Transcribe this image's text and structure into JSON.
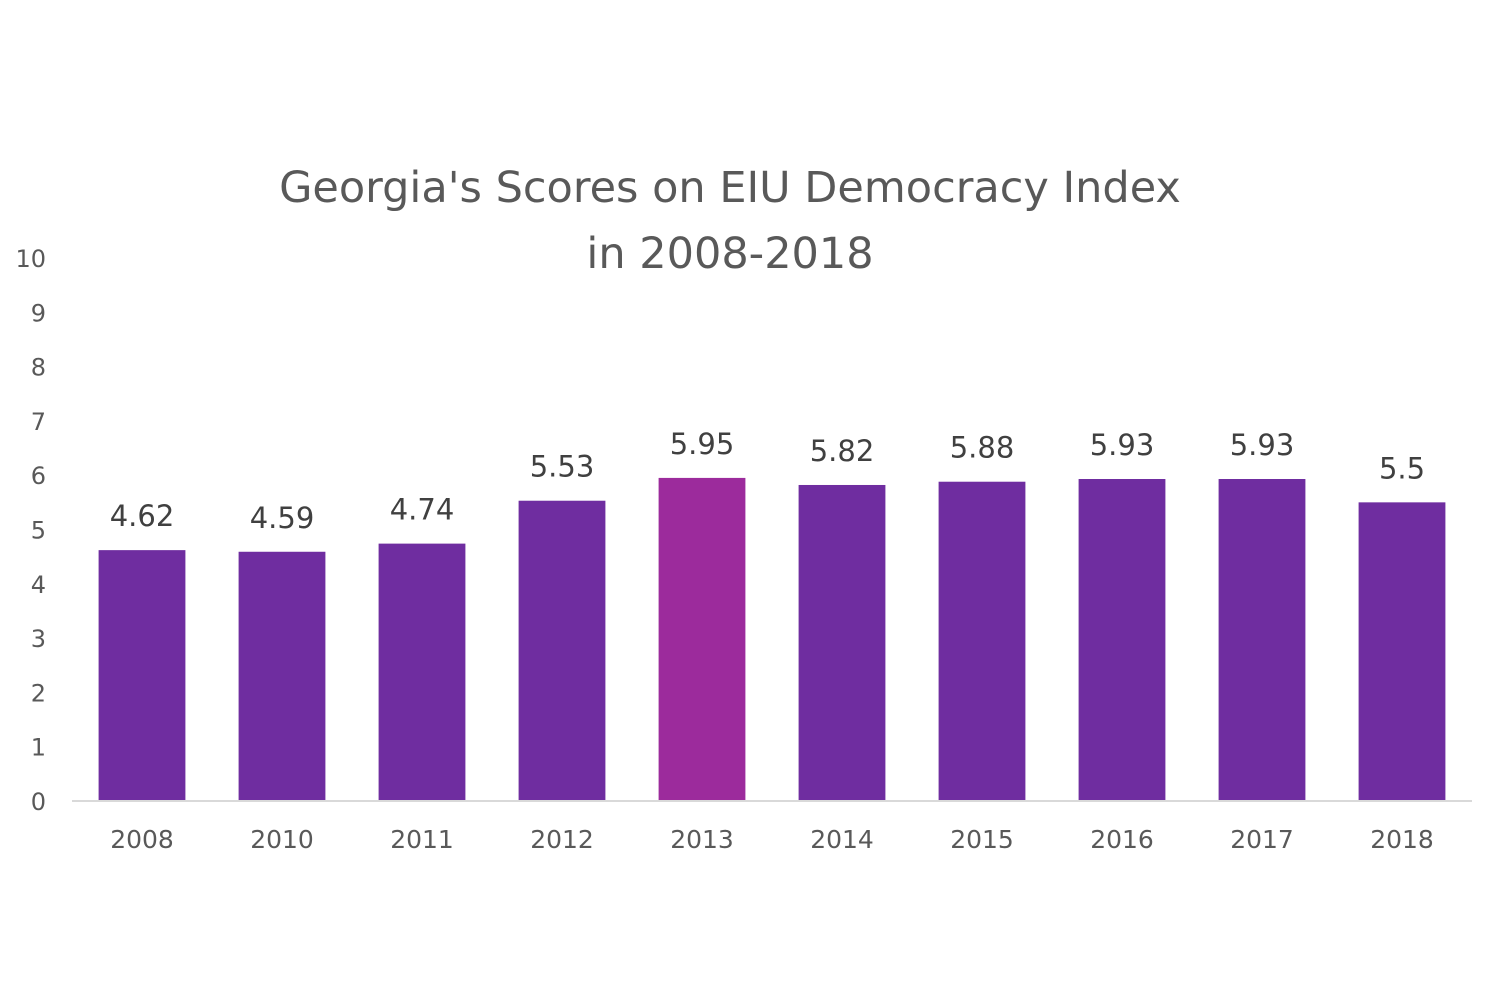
{
  "chart_data": {
    "type": "bar",
    "title": "Georgia's Scores on EIU Democracy Index",
    "subtitle": "in 2008-2018",
    "xlabel": "",
    "ylabel": "",
    "categories": [
      "2008",
      "2010",
      "2011",
      "2012",
      "2013",
      "2014",
      "2015",
      "2016",
      "2017",
      "2018"
    ],
    "values": [
      4.62,
      4.59,
      4.74,
      5.53,
      5.95,
      5.82,
      5.88,
      5.93,
      5.93,
      5.5
    ],
    "data_labels": [
      "4.62",
      "4.59",
      "4.74",
      "5.53",
      "5.95",
      "5.82",
      "5.88",
      "5.93",
      "5.93",
      "5.5"
    ],
    "ylim": [
      0,
      10
    ],
    "yticks": [
      0,
      1,
      2,
      3,
      4,
      5,
      6,
      7,
      8,
      9,
      10
    ],
    "grid": false,
    "legend": "none",
    "colors": {
      "bar": "#6f2da0",
      "highlight": "#9c2b9c",
      "highlight_category": "2013",
      "axis": "#d9d9d9",
      "text": "#595959"
    }
  }
}
